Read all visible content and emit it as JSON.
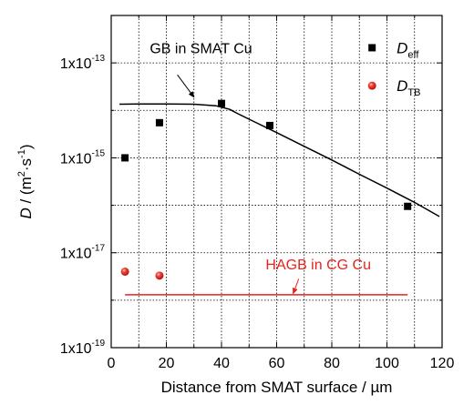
{
  "chart_data": {
    "type": "scatter",
    "xlabel": "Distance from SMAT surface / µm",
    "ylabel_main": "D",
    "ylabel_rest": " / (m",
    "ylabel_sup1": "2",
    "ylabel_dot": "·s",
    "ylabel_sup2": "-1",
    "ylabel_close": ")",
    "xlim": [
      0,
      120
    ],
    "ylim_log10": [
      -19,
      -12
    ],
    "y_scale": "log",
    "grid": "dotted",
    "x_ticks": [
      {
        "value": 0,
        "label": "0"
      },
      {
        "value": 20,
        "label": "20"
      },
      {
        "value": 40,
        "label": "40"
      },
      {
        "value": 60,
        "label": "60"
      },
      {
        "value": 80,
        "label": "80"
      },
      {
        "value": 100,
        "label": "100"
      },
      {
        "value": 120,
        "label": "120"
      }
    ],
    "y_ticks": [
      {
        "exp": -13,
        "label": "1x10",
        "sup": "-13"
      },
      {
        "exp": -15,
        "label": "1x10",
        "sup": "-15"
      },
      {
        "exp": -17,
        "label": "1x10",
        "sup": "-17"
      },
      {
        "exp": -19,
        "label": "1x10",
        "sup": "-19"
      }
    ],
    "series": [
      {
        "name": "D",
        "subscript": "eff",
        "marker": "square",
        "color": "#000000",
        "x": [
          5,
          17.5,
          40,
          57.5,
          107.5
        ],
        "y": [
          1e-15,
          5.5e-15,
          1.4e-14,
          4.8e-15,
          9.5e-17
        ]
      },
      {
        "name": "D",
        "subscript": "TB",
        "marker": "sphere",
        "color": "#e8231e",
        "x": [
          5,
          17.5
        ],
        "y": [
          4e-18,
          3.3e-18
        ]
      }
    ],
    "lines": [
      {
        "label": "GB in SMAT Cu",
        "color": "#000000",
        "x": [
          3,
          10,
          20,
          30,
          38,
          43,
          46,
          50,
          60,
          70,
          80,
          90,
          100,
          110,
          119
        ],
        "y": [
          1.35e-14,
          1.36e-14,
          1.36e-14,
          1.35e-14,
          1.25e-14,
          1.05e-14,
          8.5e-15,
          6.5e-15,
          3.4e-15,
          1.75e-15,
          9e-16,
          4.5e-16,
          2.3e-16,
          1.15e-16,
          5.8e-17
        ]
      },
      {
        "label": "HAGB in CG Cu",
        "color": "#e8231e",
        "x": [
          5,
          107.5
        ],
        "y": [
          1.3e-18,
          1.3e-18
        ]
      }
    ],
    "annotations": [
      {
        "text": "GB in SMAT Cu",
        "color": "#000000"
      },
      {
        "text": "HAGB in CG Cu",
        "color": "#e8231e"
      }
    ]
  }
}
